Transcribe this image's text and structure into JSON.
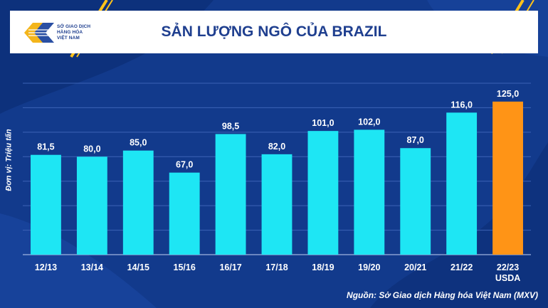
{
  "header": {
    "logo_lines": [
      "SỞ GIAO DỊCH",
      "HÀNG HÓA",
      "VIỆT NAM"
    ]
  },
  "colors": {
    "background": "#123a8c",
    "bar": "#1ee6f4",
    "highlight_bar": "#ff9416",
    "text": "#ffffff",
    "title": "#1f3f8f"
  },
  "chart_data": {
    "type": "bar",
    "title": "SẢN LƯỢNG NGÔ CỦA BRAZIL",
    "ylabel": "Đơn vị: Triệu tấn",
    "categories": [
      "12/13",
      "13/14",
      "14/15",
      "15/16",
      "16/17",
      "17/18",
      "18/19",
      "19/20",
      "20/21",
      "21/22",
      "22/23\nUSDA"
    ],
    "values": [
      81.5,
      80.0,
      85.0,
      67.0,
      98.5,
      82.0,
      101.0,
      102.0,
      87.0,
      116.0,
      125.0
    ],
    "value_labels": [
      "81,5",
      "80,0",
      "85,0",
      "67,0",
      "98,5",
      "82,0",
      "101,0",
      "102,0",
      "87,0",
      "116,0",
      "125,0"
    ],
    "highlight_index": 10,
    "ylim": [
      0,
      140
    ],
    "grid": true,
    "y_tick_labels_shown": false,
    "source": "Nguồn: Sở Giao dịch Hàng hóa Việt Nam (MXV)"
  }
}
